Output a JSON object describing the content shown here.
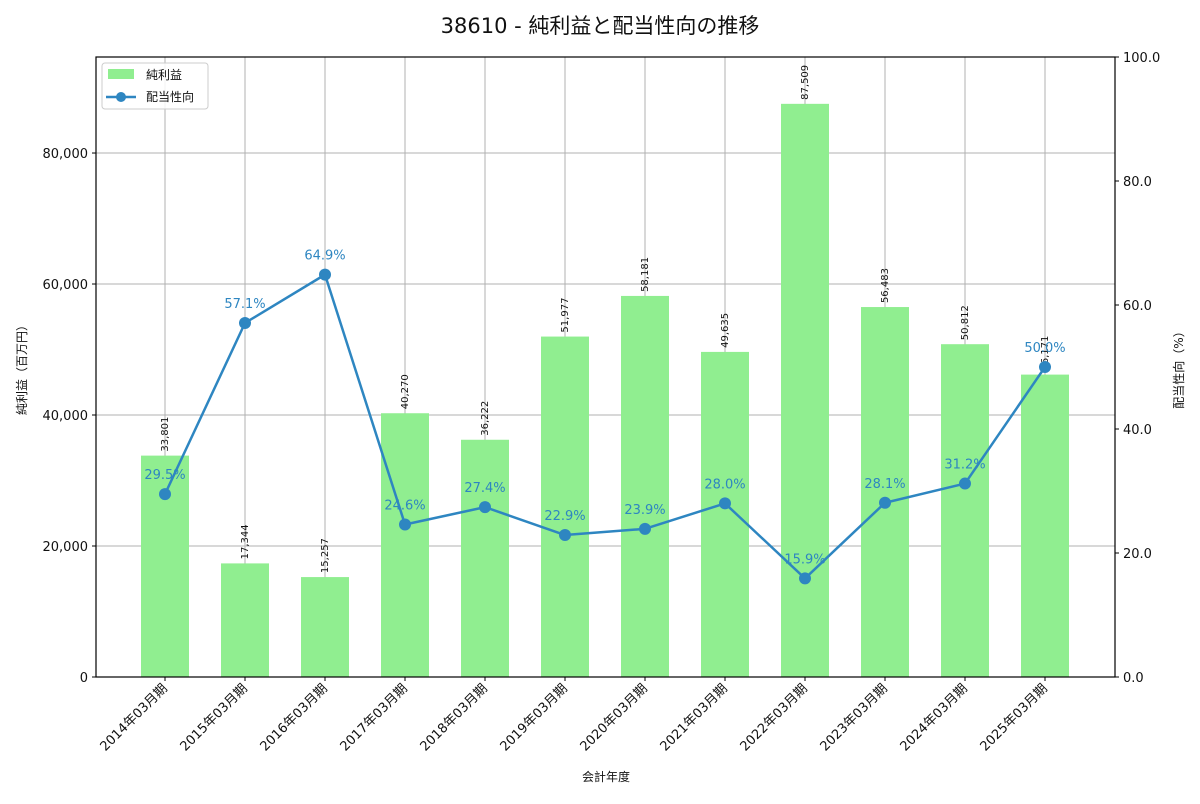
{
  "chart_data": {
    "type": "bar+line",
    "title": "38610 - 純利益と配当性向の推移",
    "xlabel": "会計年度",
    "ylabel": "純利益（百万円）",
    "y2label": "配当性向（%）",
    "categories": [
      "2014年03月期",
      "2015年03月期",
      "2016年03月期",
      "2017年03月期",
      "2018年03月期",
      "2019年03月期",
      "2020年03月期",
      "2021年03月期",
      "2022年03月期",
      "2023年03月期",
      "2024年03月期",
      "2025年03月期"
    ],
    "series": [
      {
        "name": "純利益",
        "type": "bar",
        "axis": "left",
        "color": "#90ee90",
        "values": [
          33801,
          17344,
          15257,
          40270,
          36222,
          51977,
          58181,
          49635,
          87509,
          56483,
          50812,
          46171
        ],
        "labels": [
          "33,801",
          "17,344",
          "15,257",
          "40,270",
          "36,222",
          "51,977",
          "58,181",
          "49,635",
          "87,509",
          "56,483",
          "50,812",
          "46,171"
        ]
      },
      {
        "name": "配当性向",
        "type": "line",
        "axis": "right",
        "color": "#2e86c1",
        "values": [
          29.5,
          57.1,
          64.9,
          24.6,
          27.4,
          22.9,
          23.9,
          28.0,
          15.9,
          28.1,
          31.2,
          50.0
        ],
        "labels": [
          "29.5%",
          "57.1%",
          "64.9%",
          "24.6%",
          "27.4%",
          "22.9%",
          "23.9%",
          "28.0%",
          "15.9%",
          "28.1%",
          "31.2%",
          "50.0%"
        ]
      }
    ],
    "ylim": [
      0,
      94660
    ],
    "y2lim": [
      0,
      100
    ],
    "yticks": [
      0,
      20000,
      40000,
      60000,
      80000
    ],
    "ytick_labels": [
      "0",
      "20,000",
      "40,000",
      "60,000",
      "80,000"
    ],
    "y2ticks": [
      0,
      20,
      40,
      60,
      80,
      100
    ],
    "y2tick_labels": [
      "0.0",
      "20.0",
      "40.0",
      "60.0",
      "80.0",
      "100.0"
    ],
    "grid": true,
    "legend_position": "upper left",
    "legend": [
      {
        "label": "純利益",
        "kind": "bar",
        "color": "#90ee90"
      },
      {
        "label": "配当性向",
        "kind": "line",
        "color": "#2e86c1"
      }
    ]
  }
}
